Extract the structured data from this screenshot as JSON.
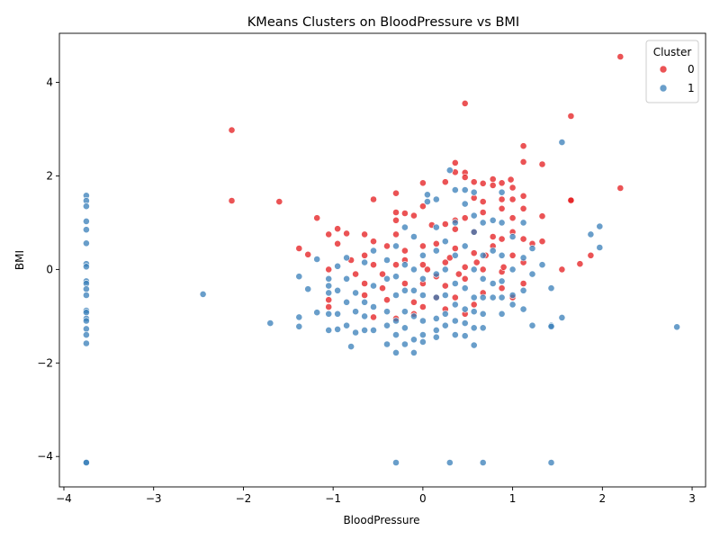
{
  "chart_data": {
    "type": "scatter",
    "title": "KMeans Clusters on BloodPressure vs BMI",
    "xlabel": "BloodPressure",
    "ylabel": "BMI",
    "xlim": [
      -4.05,
      3.15
    ],
    "ylim": [
      -4.65,
      5.05
    ],
    "xticks": [
      -4,
      -3,
      -2,
      -1,
      0,
      1,
      2,
      3
    ],
    "yticks": [
      -4,
      -2,
      0,
      2,
      4
    ],
    "grid": false,
    "legend": {
      "title": "Cluster",
      "placement": "top-right"
    },
    "series": [
      {
        "name": "0",
        "color": "#e41a1c",
        "points": [
          [
            2.2,
            4.55
          ],
          [
            0.47,
            3.55
          ],
          [
            1.65,
            3.28
          ],
          [
            -2.13,
            2.98
          ],
          [
            1.12,
            2.64
          ],
          [
            1.12,
            2.3
          ],
          [
            1.33,
            2.25
          ],
          [
            0.36,
            2.28
          ],
          [
            0.36,
            2.08
          ],
          [
            0.47,
            2.07
          ],
          [
            0.47,
            1.97
          ],
          [
            0.57,
            1.87
          ],
          [
            0.67,
            1.84
          ],
          [
            0.78,
            1.93
          ],
          [
            0.78,
            1.8
          ],
          [
            0.88,
            1.85
          ],
          [
            0.98,
            1.92
          ],
          [
            1.0,
            1.75
          ],
          [
            2.2,
            1.74
          ],
          [
            0.25,
            1.87
          ],
          [
            0.0,
            1.85
          ],
          [
            -0.3,
            1.63
          ],
          [
            1.12,
            1.57
          ],
          [
            1.65,
            1.47
          ],
          [
            1.65,
            1.48
          ],
          [
            -2.13,
            1.47
          ],
          [
            -1.6,
            1.45
          ],
          [
            -0.55,
            1.5
          ],
          [
            0.57,
            1.53
          ],
          [
            0.67,
            1.45
          ],
          [
            0.88,
            1.5
          ],
          [
            1.0,
            1.5
          ],
          [
            0.88,
            1.3
          ],
          [
            1.12,
            1.3
          ],
          [
            0.67,
            1.22
          ],
          [
            0.47,
            1.1
          ],
          [
            0.36,
            1.05
          ],
          [
            1.0,
            1.1
          ],
          [
            1.33,
            1.14
          ],
          [
            -0.3,
            1.22
          ],
          [
            -0.3,
            1.05
          ],
          [
            -0.2,
            1.2
          ],
          [
            -0.1,
            1.15
          ],
          [
            0.0,
            1.35
          ],
          [
            -1.18,
            1.1
          ],
          [
            -0.95,
            0.87
          ],
          [
            -0.85,
            0.77
          ],
          [
            -1.05,
            0.75
          ],
          [
            -0.65,
            0.75
          ],
          [
            -0.3,
            0.75
          ],
          [
            0.1,
            0.95
          ],
          [
            0.25,
            0.97
          ],
          [
            0.36,
            0.86
          ],
          [
            0.57,
            0.8
          ],
          [
            0.78,
            0.7
          ],
          [
            0.88,
            0.65
          ],
          [
            1.0,
            0.8
          ],
          [
            1.12,
            0.65
          ],
          [
            1.22,
            0.55
          ],
          [
            1.33,
            0.6
          ],
          [
            -1.38,
            0.45
          ],
          [
            -1.28,
            0.32
          ],
          [
            -0.95,
            0.55
          ],
          [
            -0.65,
            0.3
          ],
          [
            -0.55,
            0.6
          ],
          [
            -0.4,
            0.5
          ],
          [
            -0.2,
            0.4
          ],
          [
            0.0,
            0.5
          ],
          [
            0.15,
            0.55
          ],
          [
            0.36,
            0.45
          ],
          [
            0.57,
            0.35
          ],
          [
            0.78,
            0.5
          ],
          [
            1.0,
            0.3
          ],
          [
            1.12,
            0.15
          ],
          [
            -1.05,
            0.0
          ],
          [
            -0.75,
            -0.1
          ],
          [
            -0.55,
            0.1
          ],
          [
            -0.3,
            0.1
          ],
          [
            0.0,
            0.1
          ],
          [
            0.25,
            0.15
          ],
          [
            0.47,
            0.05
          ],
          [
            0.67,
            0.0
          ],
          [
            0.88,
            -0.05
          ],
          [
            1.12,
            -0.3
          ],
          [
            1.55,
            0.0
          ],
          [
            1.75,
            0.12
          ],
          [
            1.87,
            0.3
          ],
          [
            -0.65,
            -0.3
          ],
          [
            -0.45,
            -0.4
          ],
          [
            -0.2,
            -0.3
          ],
          [
            0.0,
            -0.3
          ],
          [
            0.25,
            -0.35
          ],
          [
            0.47,
            -0.2
          ],
          [
            0.67,
            -0.5
          ],
          [
            0.88,
            -0.4
          ],
          [
            1.0,
            -0.6
          ],
          [
            -1.05,
            -0.65
          ],
          [
            -1.05,
            -0.8
          ],
          [
            -0.65,
            -0.55
          ],
          [
            -0.4,
            -0.65
          ],
          [
            -0.1,
            -0.7
          ],
          [
            0.15,
            -0.6
          ],
          [
            0.36,
            -0.6
          ],
          [
            0.57,
            -0.75
          ],
          [
            -0.55,
            -1.02
          ],
          [
            -0.3,
            -1.05
          ],
          [
            -0.1,
            -0.95
          ],
          [
            0.0,
            -0.8
          ],
          [
            0.25,
            -0.85
          ],
          [
            0.47,
            -0.95
          ],
          [
            -0.2,
            0.2
          ],
          [
            0.05,
            0.0
          ],
          [
            0.15,
            -0.15
          ],
          [
            0.3,
            0.25
          ],
          [
            0.4,
            -0.1
          ],
          [
            0.6,
            0.15
          ],
          [
            0.7,
            0.3
          ],
          [
            0.9,
            0.05
          ],
          [
            -0.45,
            -0.1
          ],
          [
            -0.8,
            0.2
          ]
        ]
      },
      {
        "name": "1",
        "color": "#377eb8",
        "points": [
          [
            -3.75,
            1.58
          ],
          [
            -3.75,
            1.47
          ],
          [
            -3.75,
            1.35
          ],
          [
            -3.75,
            1.03
          ],
          [
            -3.75,
            0.85
          ],
          [
            -3.75,
            0.56
          ],
          [
            -3.75,
            0.12
          ],
          [
            -3.75,
            0.06
          ],
          [
            -3.75,
            -0.25
          ],
          [
            -3.75,
            -0.3
          ],
          [
            -3.75,
            -0.42
          ],
          [
            -3.75,
            -0.55
          ],
          [
            -3.75,
            -0.88
          ],
          [
            -3.75,
            -0.92
          ],
          [
            -3.75,
            -1.05
          ],
          [
            -3.75,
            -1.1
          ],
          [
            -3.75,
            -1.27
          ],
          [
            -3.75,
            -1.4
          ],
          [
            -3.75,
            -1.58
          ],
          [
            -3.75,
            -4.12
          ],
          [
            -3.75,
            -4.13
          ],
          [
            -2.45,
            -0.53
          ],
          [
            -1.7,
            -1.15
          ],
          [
            -1.38,
            -0.15
          ],
          [
            -1.38,
            -1.02
          ],
          [
            -1.38,
            -1.22
          ],
          [
            -1.28,
            -0.42
          ],
          [
            -1.18,
            -0.92
          ],
          [
            -1.18,
            0.22
          ],
          [
            -1.05,
            -0.95
          ],
          [
            -1.05,
            -1.3
          ],
          [
            -1.05,
            -0.5
          ],
          [
            -1.05,
            -0.35
          ],
          [
            -1.05,
            -0.2
          ],
          [
            -0.95,
            0.07
          ],
          [
            -0.95,
            -0.45
          ],
          [
            -0.95,
            -0.95
          ],
          [
            -0.95,
            -1.28
          ],
          [
            -0.85,
            0.25
          ],
          [
            -0.85,
            -0.2
          ],
          [
            -0.85,
            -0.7
          ],
          [
            -0.85,
            -1.2
          ],
          [
            -0.8,
            -1.65
          ],
          [
            -0.75,
            -0.5
          ],
          [
            -0.75,
            -0.9
          ],
          [
            -0.75,
            -1.35
          ],
          [
            -0.65,
            0.15
          ],
          [
            -0.65,
            -0.7
          ],
          [
            -0.65,
            -1.0
          ],
          [
            -0.65,
            -1.3
          ],
          [
            -0.55,
            0.4
          ],
          [
            -0.55,
            -0.35
          ],
          [
            -0.55,
            -0.8
          ],
          [
            -0.55,
            -1.3
          ],
          [
            -0.4,
            0.2
          ],
          [
            -0.4,
            -0.2
          ],
          [
            -0.4,
            -0.9
          ],
          [
            -0.4,
            -1.2
          ],
          [
            -0.4,
            -1.6
          ],
          [
            -0.3,
            0.5
          ],
          [
            -0.3,
            -0.15
          ],
          [
            -0.3,
            -0.55
          ],
          [
            -0.3,
            -1.1
          ],
          [
            -0.3,
            -1.4
          ],
          [
            -0.3,
            -1.78
          ],
          [
            -0.3,
            -4.13
          ],
          [
            -0.2,
            0.9
          ],
          [
            -0.2,
            0.1
          ],
          [
            -0.2,
            -0.45
          ],
          [
            -0.2,
            -0.9
          ],
          [
            -0.2,
            -1.25
          ],
          [
            -0.2,
            -1.6
          ],
          [
            -0.1,
            0.7
          ],
          [
            -0.1,
            0.0
          ],
          [
            -0.1,
            -0.45
          ],
          [
            -0.1,
            -1.0
          ],
          [
            -0.1,
            -1.5
          ],
          [
            -0.1,
            -1.78
          ],
          [
            0.0,
            0.3
          ],
          [
            0.0,
            -0.2
          ],
          [
            0.0,
            -0.55
          ],
          [
            0.0,
            -1.1
          ],
          [
            0.0,
            -1.4
          ],
          [
            0.0,
            -1.55
          ],
          [
            0.05,
            1.6
          ],
          [
            0.05,
            1.45
          ],
          [
            0.15,
            1.5
          ],
          [
            0.15,
            0.9
          ],
          [
            0.15,
            0.4
          ],
          [
            0.15,
            -0.1
          ],
          [
            0.15,
            -0.6
          ],
          [
            0.15,
            -1.05
          ],
          [
            0.15,
            -1.3
          ],
          [
            0.15,
            -1.45
          ],
          [
            0.25,
            0.6
          ],
          [
            0.25,
            0.0
          ],
          [
            0.25,
            -0.55
          ],
          [
            0.25,
            -0.95
          ],
          [
            0.25,
            -1.2
          ],
          [
            0.3,
            2.12
          ],
          [
            0.3,
            -4.13
          ],
          [
            0.36,
            1.7
          ],
          [
            0.36,
            1.0
          ],
          [
            0.36,
            0.3
          ],
          [
            0.36,
            -0.3
          ],
          [
            0.36,
            -0.75
          ],
          [
            0.36,
            -1.1
          ],
          [
            0.36,
            -1.4
          ],
          [
            0.47,
            1.7
          ],
          [
            0.47,
            1.4
          ],
          [
            0.47,
            0.5
          ],
          [
            0.47,
            -0.4
          ],
          [
            0.47,
            -0.85
          ],
          [
            0.47,
            -1.15
          ],
          [
            0.47,
            -1.42
          ],
          [
            0.57,
            1.65
          ],
          [
            0.57,
            1.15
          ],
          [
            0.57,
            0.8
          ],
          [
            0.57,
            0.0
          ],
          [
            0.57,
            -0.6
          ],
          [
            0.57,
            -0.9
          ],
          [
            0.57,
            -1.25
          ],
          [
            0.57,
            -1.62
          ],
          [
            0.67,
            1.0
          ],
          [
            0.67,
            0.3
          ],
          [
            0.67,
            -0.2
          ],
          [
            0.67,
            -0.6
          ],
          [
            0.67,
            -0.95
          ],
          [
            0.67,
            -1.25
          ],
          [
            0.67,
            -4.13
          ],
          [
            0.78,
            1.05
          ],
          [
            0.78,
            0.4
          ],
          [
            0.78,
            -0.3
          ],
          [
            0.78,
            -0.6
          ],
          [
            0.88,
            1.65
          ],
          [
            0.88,
            1.0
          ],
          [
            0.88,
            0.3
          ],
          [
            0.88,
            -0.25
          ],
          [
            0.88,
            -0.6
          ],
          [
            0.88,
            -0.95
          ],
          [
            1.0,
            0.7
          ],
          [
            1.0,
            0.0
          ],
          [
            1.0,
            -0.55
          ],
          [
            1.0,
            -0.75
          ],
          [
            1.12,
            1.0
          ],
          [
            1.12,
            0.25
          ],
          [
            1.12,
            -0.45
          ],
          [
            1.12,
            -0.85
          ],
          [
            1.22,
            0.45
          ],
          [
            1.22,
            -0.1
          ],
          [
            1.22,
            -1.2
          ],
          [
            1.33,
            0.1
          ],
          [
            1.43,
            -0.4
          ],
          [
            1.43,
            -1.2
          ],
          [
            1.43,
            -1.22
          ],
          [
            1.43,
            -4.13
          ],
          [
            1.55,
            2.72
          ],
          [
            1.55,
            -1.03
          ],
          [
            1.87,
            0.75
          ],
          [
            1.97,
            0.92
          ],
          [
            1.97,
            0.47
          ],
          [
            2.83,
            -1.23
          ]
        ]
      }
    ]
  }
}
